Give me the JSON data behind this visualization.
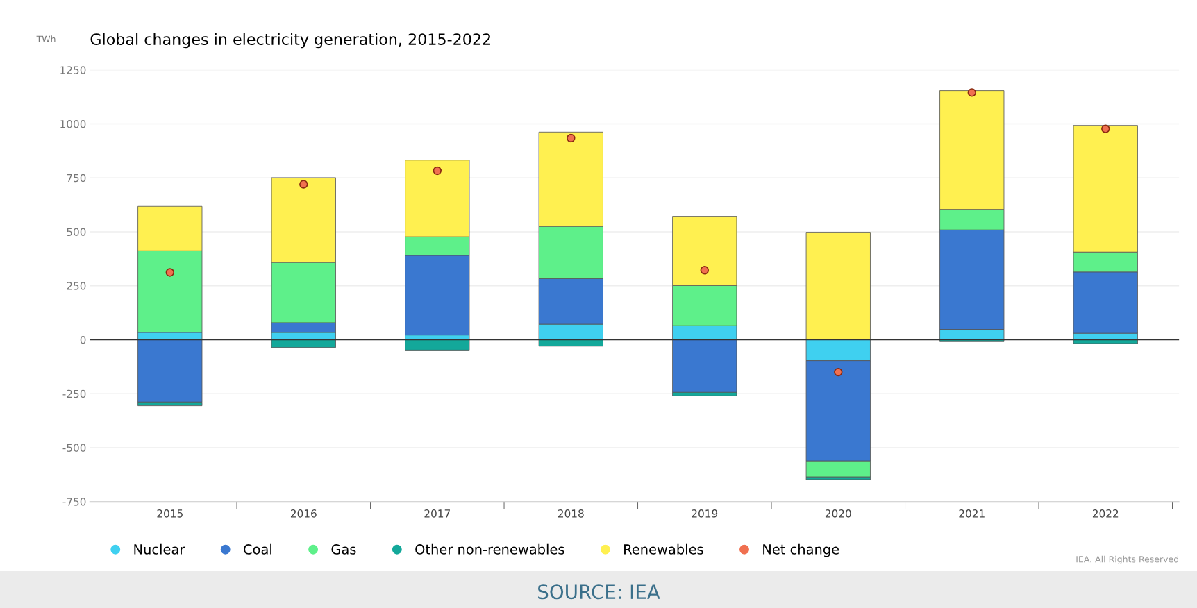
{
  "chart_data": {
    "type": "bar",
    "stacked": true,
    "title": "Global changes in electricity generation, 2015-2022",
    "ylabel": "TWh",
    "categories": [
      "2015",
      "2016",
      "2017",
      "2018",
      "2019",
      "2020",
      "2021",
      "2022"
    ],
    "series": [
      {
        "name": "Nuclear",
        "color": "#3fd0f0",
        "values": [
          34,
          34,
          22,
          72,
          65,
          -97,
          48,
          30
        ]
      },
      {
        "name": "Coal",
        "color": "#3a78d0",
        "values": [
          -289,
          45,
          369,
          211,
          -244,
          -465,
          461,
          284
        ]
      },
      {
        "name": "Gas",
        "color": "#5ef08a",
        "values": [
          378,
          279,
          86,
          242,
          186,
          -74,
          95,
          92
        ]
      },
      {
        "name": "Other non-renewables",
        "color": "#13a89a",
        "values": [
          -17,
          -36,
          -48,
          -30,
          -16,
          -12,
          -9,
          -18
        ]
      },
      {
        "name": "Renewables",
        "color": "#fff050",
        "values": [
          206,
          393,
          355,
          437,
          321,
          498,
          550,
          587
        ]
      },
      {
        "name": "Net change",
        "type": "scatter",
        "color": "#f07050",
        "values": [
          312,
          720,
          783,
          934,
          322,
          -150,
          1145,
          977
        ]
      }
    ],
    "ylim": [
      -750,
      1250
    ],
    "yticks": [
      -750,
      -500,
      -250,
      0,
      250,
      500,
      750,
      1000,
      1250
    ],
    "grid": "y",
    "legend": "bottom",
    "annotations": [
      "IEA. All Rights Reserved",
      "SOURCE: IEA"
    ]
  }
}
